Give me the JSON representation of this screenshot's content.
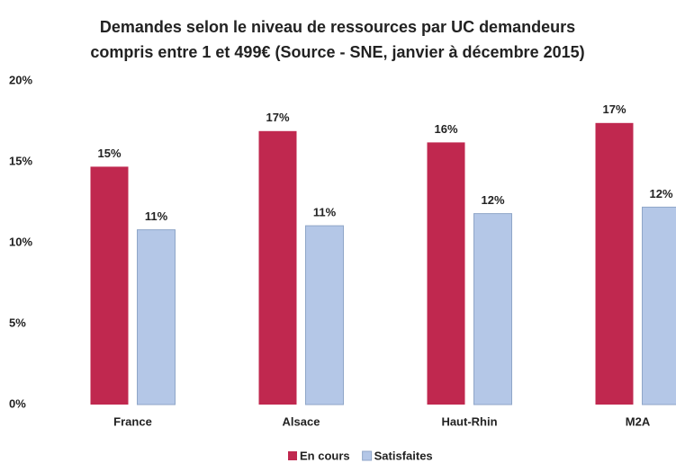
{
  "chart_data": {
    "type": "bar",
    "title": "Demandes selon le niveau de ressources par UC demandeurs compris entre 1 et 499€ (Source - SNE, janvier à décembre 2015)",
    "categories": [
      "France",
      "Alsace",
      "Haut-Rhin",
      "M2A"
    ],
    "series": [
      {
        "name": "En cours",
        "color": "#c0284f",
        "values": [
          14.7,
          16.9,
          16.2,
          17.4
        ],
        "value_labels": [
          "15%",
          "17%",
          "16%",
          "17%"
        ]
      },
      {
        "name": "Satisfaites",
        "color": "#b4c7e7",
        "values": [
          10.8,
          11.05,
          11.8,
          12.2
        ],
        "value_labels": [
          "11%",
          "11%",
          "12%",
          "12%"
        ]
      }
    ],
    "ylim": [
      0,
      20
    ],
    "yticks": [
      {
        "value": 0,
        "label": "0%"
      },
      {
        "value": 5,
        "label": "5%"
      },
      {
        "value": 10,
        "label": "10%"
      },
      {
        "value": 15,
        "label": "15%"
      },
      {
        "value": 20,
        "label": "20%"
      }
    ],
    "grid": false,
    "legend": "bottom"
  }
}
